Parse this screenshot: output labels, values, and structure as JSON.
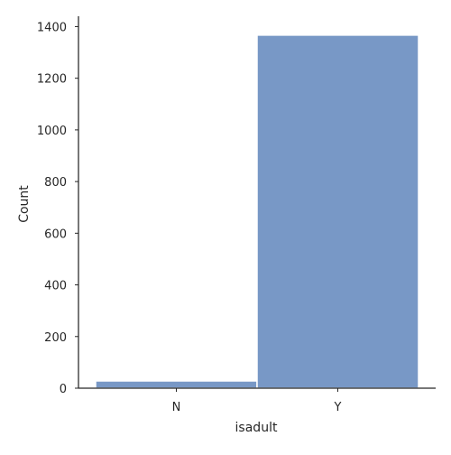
{
  "chart_data": {
    "type": "bar",
    "title": "",
    "xlabel": "isadult",
    "ylabel": "Count",
    "categories": [
      "N",
      "Y"
    ],
    "values": [
      28,
      1367
    ],
    "ylim": [
      0,
      1440
    ],
    "yticks": [
      0,
      200,
      400,
      600,
      800,
      1000,
      1200,
      1400
    ],
    "bar_color": "#7898c6",
    "axis_color": "#262626",
    "grid": false,
    "legend": "none"
  }
}
